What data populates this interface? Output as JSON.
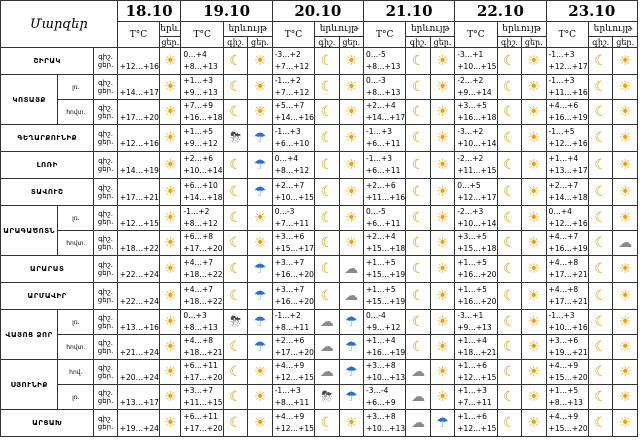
{
  "header": {
    "region_label": "Մարզեր",
    "dates": [
      "18.10",
      "19.10",
      "20.10",
      "21.10",
      "22.10",
      "23.10"
    ],
    "temp_label": "T°C",
    "weather_label": "երևույթ",
    "weather_label_short": "երև.",
    "day_label": "ցեր.",
    "night_day": [
      "գիշ.",
      "ցեր."
    ]
  },
  "rows": [
    {
      "region": "ՇԻՐԱԿ",
      "sub": [
        {
          "name": "",
          "night": "",
          "day": "",
          "t": [
            "+12…+16",
            "0…+4|+8…+13",
            "-3…+2|+7…+12",
            "0…-5|+8…+13",
            "-3…+1|+10…+15",
            "-1…+3|+12…+17"
          ],
          "w": [
            [
              "sun"
            ],
            [
              "moon",
              "sun"
            ],
            [
              "moon",
              "sun"
            ],
            [
              "moon",
              "sun"
            ],
            [
              "moon",
              "sun"
            ],
            [
              "moon",
              "sun"
            ]
          ]
        }
      ]
    },
    {
      "region": "ԿՈՏԱՅՔ",
      "sub": [
        {
          "name": "լռ.",
          "t": [
            "+14…+17",
            "+1…+3|+9…+13",
            "-1…+2|+7…+12",
            "0…-3|+8…+13",
            "-2…+2|+9…+14",
            "-1…+3|+11…+16"
          ],
          "w": [
            [
              "sun"
            ],
            [
              "moon",
              "sun"
            ],
            [
              "moon",
              "sun"
            ],
            [
              "moon",
              "sun"
            ],
            [
              "moon",
              "sun"
            ],
            [
              "moon",
              "sun"
            ]
          ]
        },
        {
          "name": "հովտ.",
          "t": [
            "+17…+20",
            "+7…+9|+16…+18",
            "+5…+7|+14…+16",
            "+2…+4|+14…+17",
            "+3…+5|+16…+18",
            "+4…+6|+16…+19"
          ],
          "w": [
            [
              "sun"
            ],
            [
              "moon",
              "sun"
            ],
            [
              "moon",
              "sun"
            ],
            [
              "moon",
              "sun"
            ],
            [
              "moon",
              "sun"
            ],
            [
              "moon",
              "sun"
            ]
          ]
        }
      ]
    },
    {
      "region": "ԳԵՂԱՐՔՈՒՆԻՔ",
      "sub": [
        {
          "name": "",
          "t": [
            "+12…+16",
            "+1…+5|+9…+12",
            "-1…+3|+6…+10",
            "-1…+3|+6…+11",
            "-3…+2|+10…+14",
            "-1…+5|+12…+16"
          ],
          "w": [
            [
              "sun"
            ],
            [
              "storm",
              "rain"
            ],
            [
              "moon",
              "sun"
            ],
            [
              "moon",
              "sun"
            ],
            [
              "moon",
              "sun"
            ],
            [
              "moon",
              "sun"
            ]
          ]
        }
      ]
    },
    {
      "region": "ԼՈՌԻ",
      "sub": [
        {
          "name": "",
          "t": [
            "+14…+19",
            "+2…+6|+10…+14",
            "0…+4|+8…+12",
            "-1…+3|+6…+11",
            "-2…+2|+11…+15",
            "+1…+4|+13…+17"
          ],
          "w": [
            [
              "sun"
            ],
            [
              "moon",
              "rain"
            ],
            [
              "moon",
              "sun"
            ],
            [
              "moon",
              "sun"
            ],
            [
              "moon",
              "sun"
            ],
            [
              "moon",
              "sun"
            ]
          ]
        }
      ]
    },
    {
      "region": "ՏԱՎՈՒՇ",
      "sub": [
        {
          "name": "",
          "t": [
            "+17…+21",
            "+6…+10|+14…+18",
            "+2…+7|+10…+15",
            "+2…+6|+11…+16",
            "0…+5|+12…+17",
            "+2…+7|+14…+18"
          ],
          "w": [
            [
              "sun"
            ],
            [
              "moon",
              "rain"
            ],
            [
              "moon",
              "sun"
            ],
            [
              "moon",
              "sun"
            ],
            [
              "moon",
              "sun"
            ],
            [
              "moon",
              "sun"
            ]
          ]
        }
      ]
    },
    {
      "region": "ԱՐԱԳԱԾՈՏՆ",
      "sub": [
        {
          "name": "լռ.",
          "t": [
            "+12…+15",
            "-1…+2|+8…+12",
            "0…-3|+7…+11",
            "0…-5|+6…+11",
            "-2…+3|+10…+14",
            "0…+4|+12…+16"
          ],
          "w": [
            [
              "sun"
            ],
            [
              "moon",
              "sun"
            ],
            [
              "moon",
              "sun"
            ],
            [
              "moon",
              "sun"
            ],
            [
              "moon",
              "sun"
            ],
            [
              "moon",
              "sun"
            ]
          ]
        },
        {
          "name": "հովտ.",
          "t": [
            "+18…+22",
            "+6…+8|+17…+20",
            "+3…+6|+15…+17",
            "+2…+4|+15…+18",
            "+3…+5|+15…+18",
            "+4…+7|+16…+19"
          ],
          "w": [
            [
              "sun"
            ],
            [
              "moon",
              "sun"
            ],
            [
              "moon",
              "sun"
            ],
            [
              "moon",
              "sun"
            ],
            [
              "moon",
              "sun"
            ],
            [
              "moon",
              "cloud"
            ]
          ]
        }
      ]
    },
    {
      "region": "ԱՐԱՐԱՏ",
      "sub": [
        {
          "name": "",
          "t": [
            "+22…+24",
            "+4…+7|+18…+22",
            "+3…+7|+16…+20",
            "+1…+5|+15…+19",
            "+1…+5|+16…+20",
            "+4…+8|+17…+21"
          ],
          "w": [
            [
              "sun"
            ],
            [
              "moon",
              "rain"
            ],
            [
              "moon",
              "cloud"
            ],
            [
              "moon",
              "sun"
            ],
            [
              "moon",
              "sun"
            ],
            [
              "moon",
              "sun"
            ]
          ]
        }
      ]
    },
    {
      "region": "ԱՐՄԱՎԻՐ",
      "sub": [
        {
          "name": "",
          "t": [
            "+22…+24",
            "+4…+7|+18…+22",
            "+3…+7|+16…+20",
            "+1…+5|+15…+19",
            "+1…+5|+16…+20",
            "+4…+8|+17…+21"
          ],
          "w": [
            [
              "sun"
            ],
            [
              "moon",
              "rain"
            ],
            [
              "moon",
              "cloud"
            ],
            [
              "moon",
              "sun"
            ],
            [
              "moon",
              "sun"
            ],
            [
              "moon",
              "sun"
            ]
          ]
        }
      ]
    },
    {
      "region": "ՎԱՅՈՑ ՁՈՐ",
      "sub": [
        {
          "name": "լռ.",
          "t": [
            "+13…+16",
            "0…+3|+8…+13",
            "-1…+2|+8…+11",
            "0…-4|+9…+12",
            "-3…+1|+9…+13",
            "-1…+3|+10…+16"
          ],
          "w": [
            [
              "sun"
            ],
            [
              "storm",
              "rain"
            ],
            [
              "cloud",
              "rain"
            ],
            [
              "moon",
              "sun"
            ],
            [
              "moon",
              "sun"
            ],
            [
              "moon",
              "sun"
            ]
          ]
        },
        {
          "name": "հովտ.",
          "t": [
            "+21…+24",
            "+4…+8|+18…+21",
            "+2…+6|+17…+20",
            "+1…+4|+16…+19",
            "+1…+4|+18…+21",
            "+3…+6|+19…+21"
          ],
          "w": [
            [
              "sun"
            ],
            [
              "moon",
              "rain"
            ],
            [
              "cloud",
              "rain"
            ],
            [
              "moon",
              "sun"
            ],
            [
              "moon",
              "sun"
            ],
            [
              "moon",
              "sun"
            ]
          ]
        }
      ]
    },
    {
      "region": "ՍՅՈՒՆԻՔ",
      "sub": [
        {
          "name": "հով.",
          "t": [
            "+20…+24",
            "+6…+11|+17…+20",
            "+4…+9|+12…+15",
            "+3…+8|+10…+13",
            "+1…+6|+12…+15",
            "+4…+9|+15…+20"
          ],
          "w": [
            [
              "sun"
            ],
            [
              "moon",
              "sun"
            ],
            [
              "cloud",
              "rain"
            ],
            [
              "cloud",
              "sun"
            ],
            [
              "moon",
              "sun"
            ],
            [
              "moon",
              "sun"
            ]
          ]
        },
        {
          "name": "լռ.",
          "t": [
            "+13…+17",
            "+3…+7|+11…+15",
            "-1…+3|+8…+11",
            "-3…-4|+6…+9",
            "+1…+3|+7…+11",
            "+1…+5|+8…+13"
          ],
          "w": [
            [
              "sun"
            ],
            [
              "moon",
              "sun"
            ],
            [
              "storm",
              "rain"
            ],
            [
              "cloud",
              "sun"
            ],
            [
              "moon",
              "sun"
            ],
            [
              "moon",
              "sun"
            ]
          ]
        }
      ]
    },
    {
      "region": "ԱՐՑԱԽ",
      "sub": [
        {
          "name": "",
          "t": [
            "+19…+24",
            "+6…+11|+17…+20",
            "+4…+9|+12…+15",
            "+3…+8|+10…+13",
            "+1…+6|+12…+15",
            "+4…+9|+15…+20"
          ],
          "w": [
            [
              "sun"
            ],
            [
              "moon",
              "sun"
            ],
            [
              "moon",
              "sun"
            ],
            [
              "cloud",
              "rain"
            ],
            [
              "moon",
              "sun"
            ],
            [
              "moon",
              "sun"
            ]
          ]
        }
      ]
    }
  ],
  "icons": {
    "sun": "☀",
    "moon": "☾",
    "cloud": "☁",
    "rain": "☂",
    "storm": "⛈"
  }
}
